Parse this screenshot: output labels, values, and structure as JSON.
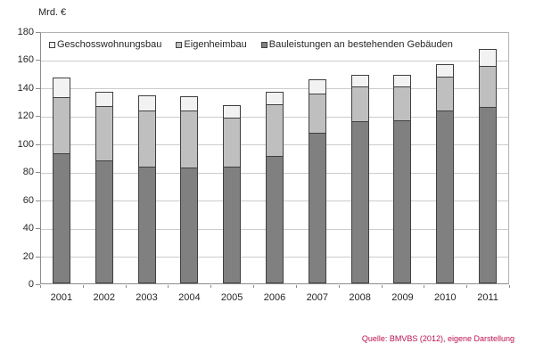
{
  "title": "Mrd. €",
  "source": {
    "text": "Quelle: BMVBS (2012), eigene Darstellung",
    "color": "#c0104e"
  },
  "legend": [
    {
      "label": "Geschosswohnungsbau",
      "color": "#f2f2f2"
    },
    {
      "label": "Eigenheimbau",
      "color": "#bfbfbf"
    },
    {
      "label": "Bauleistungen an bestehenden Gebäuden",
      "color": "#808080"
    }
  ],
  "chart_data": {
    "type": "bar",
    "stacked": true,
    "title": "",
    "ylabel": "Mrd. €",
    "xlabel": "",
    "ylim": [
      0,
      180
    ],
    "yticks": [
      0,
      20,
      40,
      60,
      80,
      100,
      120,
      140,
      160,
      180
    ],
    "grid": true,
    "legend_position": "top-inside",
    "categories": [
      "2001",
      "2002",
      "2003",
      "2004",
      "2005",
      "2006",
      "2007",
      "2008",
      "2009",
      "2010",
      "2011"
    ],
    "series": [
      {
        "name": "Bauleistungen an bestehenden Gebäuden",
        "color": "#808080",
        "values": [
          92,
          87,
          83,
          82,
          83,
          90,
          107,
          115,
          116,
          123,
          125
        ]
      },
      {
        "name": "Eigenheimbau",
        "color": "#bfbfbf",
        "values": [
          40,
          39,
          40,
          41,
          35,
          37,
          28,
          25,
          24,
          24,
          29
        ]
      },
      {
        "name": "Geschosswohnungsbau",
        "color": "#f2f2f2",
        "values": [
          14,
          10,
          11,
          10,
          9,
          9,
          10,
          8,
          8,
          9,
          12
        ]
      }
    ],
    "totals": [
      146,
      136,
      134,
      133,
      127,
      136,
      145,
      148,
      148,
      156,
      166
    ],
    "outline_color": "#404040"
  }
}
